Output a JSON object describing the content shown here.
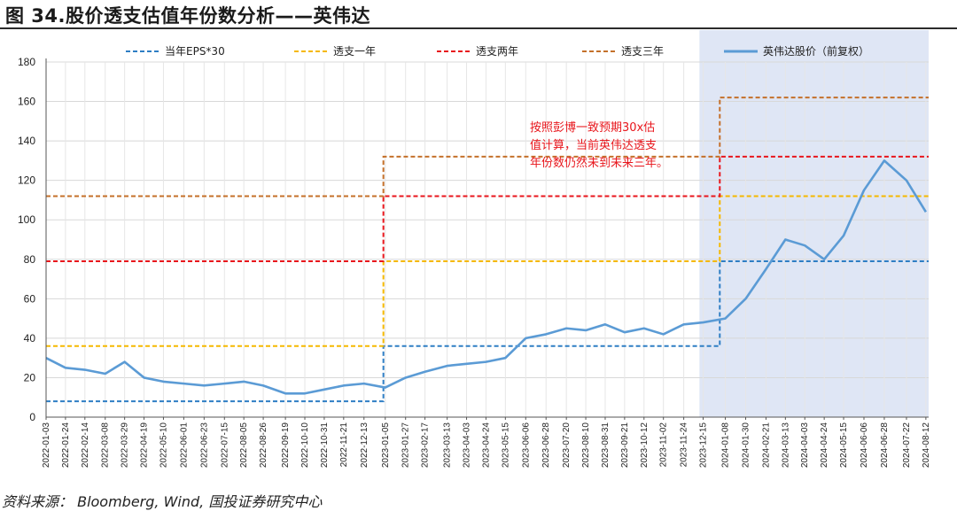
{
  "title": "图 34.股价透支估值年份数分析——英伟达",
  "source": "资料来源： Bloomberg, Wind, 国投证券研究中心",
  "chart_data": {
    "type": "line",
    "ylim": [
      0,
      180
    ],
    "yticks": [
      0,
      20,
      40,
      60,
      80,
      100,
      120,
      140,
      160,
      180
    ],
    "grid": true,
    "legend_position": "top",
    "x_tick_labels": [
      "2022-01-03",
      "2022-01-24",
      "2022-02-14",
      "2022-03-08",
      "2022-03-29",
      "2022-04-19",
      "2022-05-10",
      "2022-06-01",
      "2022-06-23",
      "2022-07-15",
      "2022-08-05",
      "2022-08-26",
      "2022-09-19",
      "2022-10-10",
      "2022-10-31",
      "2022-11-21",
      "2022-12-13",
      "2023-01-05",
      "2023-01-27",
      "2023-02-17",
      "2023-03-13",
      "2023-04-03",
      "2023-04-24",
      "2023-05-15",
      "2023-06-06",
      "2023-06-28",
      "2023-07-20",
      "2023-08-10",
      "2023-08-31",
      "2023-09-21",
      "2023-10-12",
      "2023-11-02",
      "2023-11-24",
      "2023-12-15",
      "2024-01-08",
      "2024-01-30",
      "2024-02-21",
      "2024-03-13",
      "2024-04-03",
      "2024-04-24",
      "2024-05-15",
      "2024-06-06",
      "2024-06-28",
      "2024-07-22",
      "2024-08-12"
    ],
    "series": [
      {
        "name": "当年EPS*30",
        "style": "dashed",
        "color": "#2e7ec4",
        "steps": [
          {
            "from": "2022-01-03",
            "to": "2023-01-03",
            "value": 8
          },
          {
            "from": "2023-01-03",
            "to": "2024-01-02",
            "value": 36
          },
          {
            "from": "2024-01-02",
            "to": "2024-08-15",
            "value": 79
          }
        ]
      },
      {
        "name": "透支一年",
        "style": "dashed",
        "color": "#f5b800",
        "steps": [
          {
            "from": "2022-01-03",
            "to": "2023-01-03",
            "value": 36
          },
          {
            "from": "2023-01-03",
            "to": "2024-01-02",
            "value": 79
          },
          {
            "from": "2024-01-02",
            "to": "2024-08-15",
            "value": 112
          }
        ]
      },
      {
        "name": "透支两年",
        "style": "dashed",
        "color": "#e8161c",
        "steps": [
          {
            "from": "2022-01-03",
            "to": "2023-01-03",
            "value": 79
          },
          {
            "from": "2023-01-03",
            "to": "2024-01-02",
            "value": 112
          },
          {
            "from": "2024-01-02",
            "to": "2024-08-15",
            "value": 132
          }
        ]
      },
      {
        "name": "透支三年",
        "style": "dashed",
        "color": "#c4702a",
        "steps": [
          {
            "from": "2022-01-03",
            "to": "2023-01-03",
            "value": 112
          },
          {
            "from": "2023-01-03",
            "to": "2024-01-02",
            "value": 132
          },
          {
            "from": "2024-01-02",
            "to": "2024-08-15",
            "value": 162
          }
        ]
      },
      {
        "name": "英伟达股价（前复权）",
        "style": "solid",
        "color": "#5b9bd5",
        "x": [
          "2022-01-03",
          "2022-01-24",
          "2022-02-14",
          "2022-03-08",
          "2022-03-29",
          "2022-04-19",
          "2022-05-10",
          "2022-06-01",
          "2022-06-23",
          "2022-07-15",
          "2022-08-05",
          "2022-08-26",
          "2022-09-19",
          "2022-10-10",
          "2022-10-31",
          "2022-11-21",
          "2022-12-13",
          "2023-01-05",
          "2023-01-27",
          "2023-02-17",
          "2023-03-13",
          "2023-04-03",
          "2023-04-24",
          "2023-05-15",
          "2023-06-06",
          "2023-06-28",
          "2023-07-20",
          "2023-08-10",
          "2023-08-31",
          "2023-09-21",
          "2023-10-12",
          "2023-11-02",
          "2023-11-24",
          "2023-12-15",
          "2024-01-08",
          "2024-01-30",
          "2024-02-21",
          "2024-03-13",
          "2024-04-03",
          "2024-04-24",
          "2024-05-15",
          "2024-06-06",
          "2024-06-28",
          "2024-07-22",
          "2024-08-12"
        ],
        "values": [
          30,
          25,
          24,
          22,
          28,
          20,
          18,
          17,
          16,
          17,
          18,
          16,
          12,
          12,
          14,
          16,
          17,
          15,
          20,
          23,
          26,
          27,
          28,
          30,
          40,
          42,
          45,
          44,
          47,
          43,
          45,
          42,
          47,
          48,
          50,
          60,
          75,
          90,
          87,
          80,
          92,
          115,
          130,
          120,
          104
        ]
      }
    ],
    "highlight_region": {
      "from": "2023-12-11",
      "to": "2024-08-15"
    },
    "annotation": [
      "按照彭博一致预期30x估",
      "值计算，当前英伟达透支",
      "年份数仍然未到未来三年。"
    ]
  }
}
